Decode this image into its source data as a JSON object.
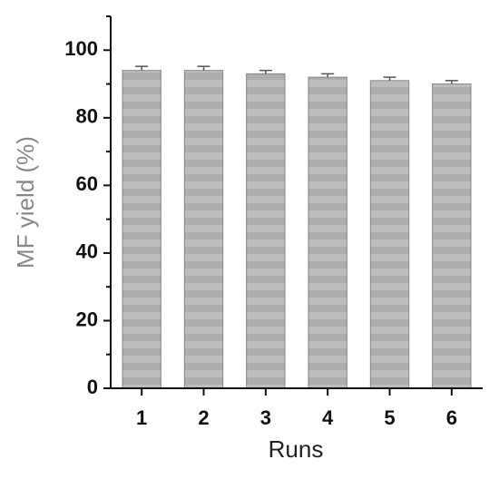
{
  "chart_data": {
    "type": "bar",
    "x_label": "Runs",
    "y_label": "MF yield (%)",
    "categories": [
      "1",
      "2",
      "3",
      "4",
      "5",
      "6"
    ],
    "values": [
      94,
      94,
      93,
      92,
      91,
      90
    ],
    "errors": [
      1.2,
      1.2,
      1.0,
      1.0,
      1.0,
      1.0
    ],
    "color": "#bdbdbd",
    "ylim": [
      0,
      110
    ],
    "yticks": [
      0,
      20,
      40,
      60,
      80,
      100
    ],
    "yminor": [
      10,
      30,
      50,
      70,
      90,
      110
    ],
    "grid": false
  }
}
